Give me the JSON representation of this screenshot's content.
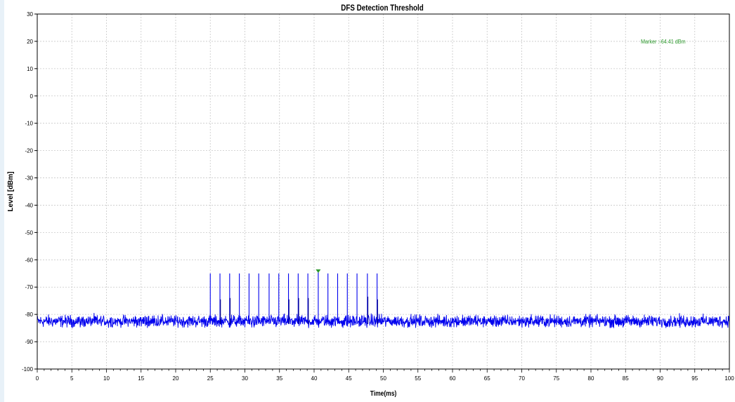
{
  "chart_data": {
    "type": "line",
    "title": "DFS Detection Threshold",
    "xlabel": "Time(ms)",
    "ylabel": "Level [dBm]",
    "xlim": [
      0,
      100
    ],
    "ylim": [
      -100,
      30
    ],
    "x_ticks": [
      0,
      5,
      10,
      15,
      20,
      25,
      30,
      35,
      40,
      45,
      50,
      55,
      60,
      65,
      70,
      75,
      80,
      85,
      90,
      95,
      100
    ],
    "y_ticks": [
      30,
      20,
      10,
      0,
      -10,
      -20,
      -30,
      -40,
      -50,
      -60,
      -70,
      -80,
      -90,
      -100
    ],
    "grid": true,
    "series": [
      {
        "color": "#0000ee",
        "noise_floor_dbm": -82.5,
        "noise_range_dbm": [
          -85,
          -79
        ],
        "pulses": [
          {
            "x": 25.0,
            "peak": -65
          },
          {
            "x": 26.4,
            "peak": -65
          },
          {
            "x": 27.8,
            "peak": -65
          },
          {
            "x": 29.2,
            "peak": -65
          },
          {
            "x": 30.6,
            "peak": -65
          },
          {
            "x": 32.0,
            "peak": -65
          },
          {
            "x": 33.5,
            "peak": -65
          },
          {
            "x": 34.9,
            "peak": -65
          },
          {
            "x": 36.3,
            "peak": -65
          },
          {
            "x": 37.7,
            "peak": -65
          },
          {
            "x": 39.1,
            "peak": -65
          },
          {
            "x": 40.6,
            "peak": -64.41
          },
          {
            "x": 42.0,
            "peak": -65
          },
          {
            "x": 43.4,
            "peak": -65
          },
          {
            "x": 44.8,
            "peak": -65
          },
          {
            "x": 46.2,
            "peak": -65
          },
          {
            "x": 47.7,
            "peak": -65
          },
          {
            "x": 49.1,
            "peak": -65
          }
        ],
        "secondary_spikes": [
          {
            "x": 26.4,
            "peak": -74.5
          },
          {
            "x": 27.8,
            "peak": -74
          },
          {
            "x": 36.3,
            "peak": -74.5
          },
          {
            "x": 37.7,
            "peak": -74
          },
          {
            "x": 39.1,
            "peak": -74
          },
          {
            "x": 47.7,
            "peak": -73.5
          },
          {
            "x": 49.1,
            "peak": -74.5
          }
        ]
      }
    ],
    "marker": {
      "x": 40.6,
      "y": -64.41,
      "label": "Marker :-64.41 dBm",
      "color": "#2e9a2e"
    }
  }
}
